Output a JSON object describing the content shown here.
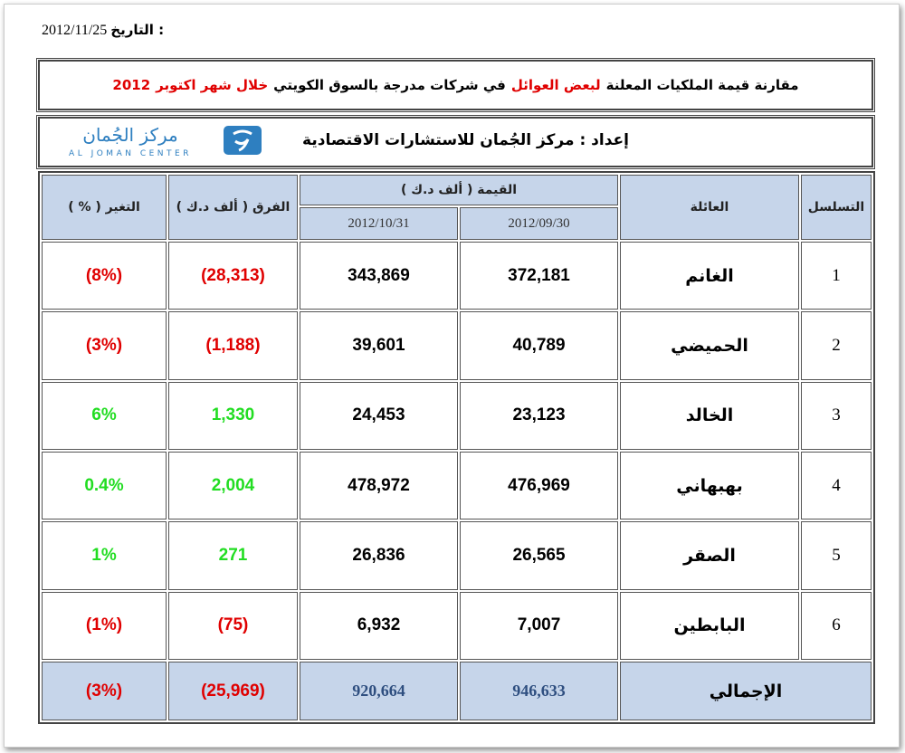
{
  "date_label": "التاريخ :",
  "date": "2012/11/25",
  "title_parts": [
    {
      "text": "مقارنة قيمة الملكيات المعلنة",
      "color": "#000000"
    },
    {
      "text": "لبعض العوائل",
      "color": "#e00000"
    },
    {
      "text": "في شركات مدرجة بالسوق الكويتي",
      "color": "#000000"
    },
    {
      "text": "خلال شهر اكتوبر",
      "color": "#e00000"
    },
    {
      "text": "2012",
      "color": "#e00000"
    }
  ],
  "prepared_label": "إعداد :",
  "prepared_by": "مركز الجُمان للاستشارات الاقتصادية",
  "logo": {
    "arabic": "مركز الجُمان",
    "english": "AL JOMAN CENTER"
  },
  "table": {
    "headers": {
      "seq": "التسلسل",
      "family": "العائلة",
      "value": "القيمة ( ألف د.ك )",
      "date1": "2012/09/30",
      "date2": "2012/10/31",
      "diff": "الفرق ( ألف د.ك )",
      "change": "التغير ( % )"
    },
    "rows": [
      [
        "1",
        "الغانم",
        "372,181",
        "343,869",
        "(28,313)",
        "(8%)"
      ],
      [
        "2",
        "الحميضي",
        "40,789",
        "39,601",
        "(1,188)",
        "(3%)"
      ],
      [
        "3",
        "الخالد",
        "23,123",
        "24,453",
        "1,330",
        "6%"
      ],
      [
        "4",
        "بهبهاني",
        "476,969",
        "478,972",
        "2,004",
        "0.4%"
      ],
      [
        "5",
        "الصقر",
        "26,565",
        "26,836",
        "271",
        "1%"
      ],
      [
        "6",
        "البابطين",
        "7,007",
        "6,932",
        "(75)",
        "(1%)"
      ]
    ],
    "row_colors": [
      "#e00000",
      "#e00000",
      "#22dd22",
      "#22dd22",
      "#22dd22",
      "#e00000"
    ],
    "total": [
      "الإجمالي",
      "946,633",
      "920,664",
      "(25,969)",
      "(3%)"
    ],
    "total_color": "#e00000"
  }
}
